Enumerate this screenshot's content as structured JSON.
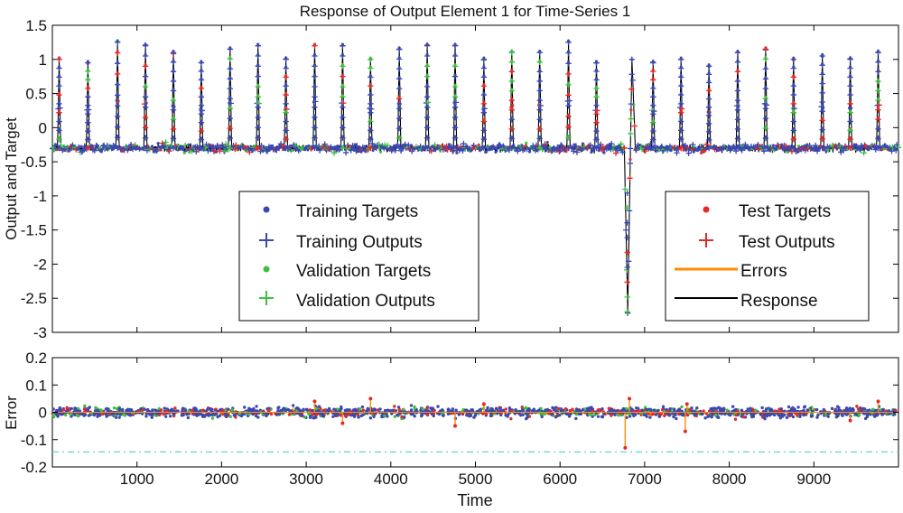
{
  "title": "Response of Output Element 1 for Time-Series 1",
  "chart_data": [
    {
      "type": "line",
      "panel": "response",
      "ylabel": "Output and Target",
      "xlabel": "",
      "xlim": [
        0,
        10000
      ],
      "ylim": [
        -3,
        1.5
      ],
      "yticks": [
        -3,
        -2.5,
        -2,
        -1.5,
        -1,
        -0.5,
        0,
        0.5,
        1,
        1.5
      ],
      "ytick_labels": [
        "-3",
        "-2.5",
        "-2",
        "-1.5",
        "-1",
        "-0.5",
        "0",
        "0.5",
        "1",
        "1.5"
      ],
      "baseline": -0.3,
      "peak_times": [
        80,
        420,
        770,
        1100,
        1430,
        1760,
        2100,
        2430,
        2760,
        3100,
        3430,
        3760,
        4100,
        4430,
        4760,
        5100,
        5430,
        5760,
        6100,
        6430,
        7100,
        7430,
        7760,
        8100,
        8430,
        8760,
        9100,
        9430,
        9760
      ],
      "peak_values": [
        1.0,
        0.95,
        1.25,
        1.2,
        1.1,
        0.95,
        1.15,
        1.2,
        1.0,
        1.2,
        1.2,
        1.0,
        1.15,
        1.2,
        1.2,
        1.0,
        1.1,
        1.1,
        1.25,
        0.95,
        0.95,
        1.0,
        0.9,
        1.1,
        1.15,
        1.0,
        1.05,
        1.0,
        1.1
      ],
      "anomaly": {
        "time": 6800,
        "min": -2.7,
        "max": 1.0
      },
      "legend_left": {
        "position": "center",
        "entries": [
          "Training Targets",
          "Training Outputs",
          "Validation Targets",
          "Validation Outputs"
        ]
      },
      "legend_right": {
        "position": "right",
        "entries": [
          "Test Targets",
          "Test Outputs",
          "Errors",
          "Response"
        ]
      }
    },
    {
      "type": "scatter",
      "panel": "error",
      "ylabel": "Error",
      "xlabel": "Time",
      "xlim": [
        0,
        10000
      ],
      "ylim": [
        -0.2,
        0.2
      ],
      "xticks": [
        1000,
        2000,
        3000,
        4000,
        5000,
        6000,
        7000,
        8000,
        9000
      ],
      "xtick_labels": [
        "1000",
        "2000",
        "3000",
        "4000",
        "5000",
        "6000",
        "7000",
        "8000",
        "9000"
      ],
      "yticks": [
        -0.2,
        -0.1,
        0,
        0.1,
        0.2
      ],
      "ytick_labels": [
        "-0.2",
        "-0.1",
        "0",
        "0.1",
        "0.2"
      ],
      "zero_line": 0,
      "threshold_line": -0.145,
      "noise_amplitude": 0.03,
      "notable_errors": [
        {
          "x": 3100,
          "y": 0.04
        },
        {
          "x": 3430,
          "y": -0.04
        },
        {
          "x": 3760,
          "y": 0.05
        },
        {
          "x": 4760,
          "y": -0.05
        },
        {
          "x": 5100,
          "y": 0.03
        },
        {
          "x": 6770,
          "y": -0.13
        },
        {
          "x": 6820,
          "y": 0.05
        },
        {
          "x": 7480,
          "y": -0.07
        },
        {
          "x": 7500,
          "y": 0.03
        },
        {
          "x": 9430,
          "y": -0.03
        },
        {
          "x": 9760,
          "y": 0.04
        }
      ]
    }
  ],
  "colors": {
    "training": "#3a49b0",
    "validation": "#3fbf3f",
    "test": "#e62828",
    "errors": "#ff8c00",
    "response": "#000000",
    "threshold": "#58d6d6"
  }
}
